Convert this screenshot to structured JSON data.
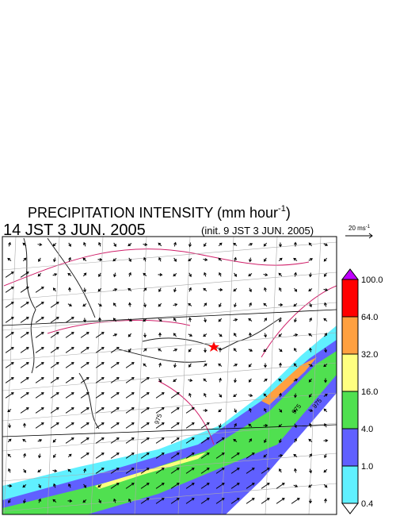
{
  "header": {
    "title": "PRECIPITATION INTENSITY (mm hour",
    "title_exponent": "-1",
    "title_close": ")",
    "time": "14 JST 3 JUN. 2005",
    "init": "(init. 9 JST 3 JUN. 2005)"
  },
  "wind_scale": {
    "label": "20 ms",
    "exponent": "-1"
  },
  "colorbar": {
    "labels": [
      "100.0",
      "64.0",
      "32.0",
      "16.0",
      "4.0",
      "1.0",
      "0.4"
    ],
    "colors": [
      "#ff0000",
      "#ffa040",
      "#ffff80",
      "#50e050",
      "#6060ff",
      "#60f0ff"
    ],
    "over_color": "#c000ff",
    "under_color": "#ffffff"
  },
  "contour_labels": [
    "975",
    "975",
    "975"
  ]
}
